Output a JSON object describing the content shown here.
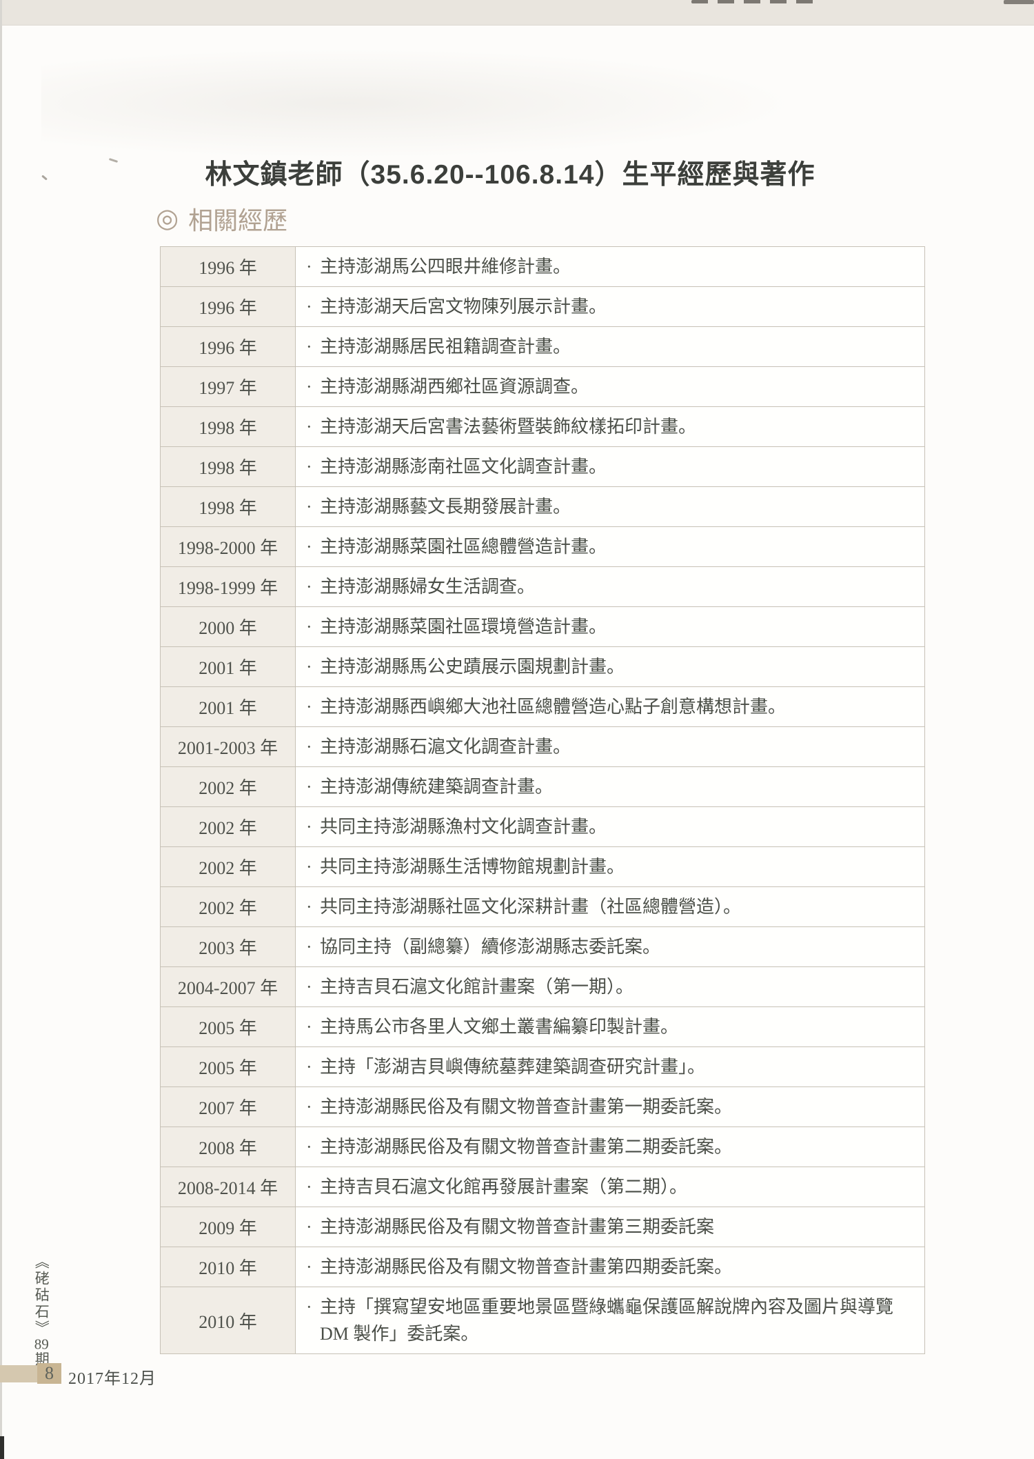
{
  "page": {
    "title": "林文鎮老師（35.6.20--106.8.14）生平經歷與著作",
    "section_marker": "◎",
    "section_title": "相關經歷"
  },
  "experience": {
    "bullet": "·",
    "rows": [
      {
        "year": "1996 年",
        "desc": "主持澎湖馬公四眼井維修計畫。"
      },
      {
        "year": "1996 年",
        "desc": "主持澎湖天后宮文物陳列展示計畫。"
      },
      {
        "year": "1996 年",
        "desc": "主持澎湖縣居民祖籍調查計畫。"
      },
      {
        "year": "1997 年",
        "desc": "主持澎湖縣湖西鄉社區資源調查。"
      },
      {
        "year": "1998 年",
        "desc": "主持澎湖天后宮書法藝術暨裝飾紋樣拓印計畫。"
      },
      {
        "year": "1998 年",
        "desc": "主持澎湖縣澎南社區文化調查計畫。"
      },
      {
        "year": "1998 年",
        "desc": "主持澎湖縣藝文長期發展計畫。"
      },
      {
        "year": "1998-2000 年",
        "desc": "主持澎湖縣菜園社區總體營造計畫。"
      },
      {
        "year": "1998-1999 年",
        "desc": "主持澎湖縣婦女生活調查。"
      },
      {
        "year": "2000 年",
        "desc": "主持澎湖縣菜園社區環境營造計畫。"
      },
      {
        "year": "2001 年",
        "desc": "主持澎湖縣馬公史蹟展示園規劃計畫。"
      },
      {
        "year": "2001 年",
        "desc": "主持澎湖縣西嶼鄉大池社區總體營造心點子創意構想計畫。"
      },
      {
        "year": "2001-2003 年",
        "desc": "主持澎湖縣石滬文化調查計畫。"
      },
      {
        "year": "2002 年",
        "desc": "主持澎湖傳統建築調查計畫。"
      },
      {
        "year": "2002 年",
        "desc": "共同主持澎湖縣漁村文化調查計畫。"
      },
      {
        "year": "2002 年",
        "desc": "共同主持澎湖縣生活博物館規劃計畫。"
      },
      {
        "year": "2002 年",
        "desc": "共同主持澎湖縣社區文化深耕計畫（社區總體營造）。"
      },
      {
        "year": "2003 年",
        "desc": "協同主持（副總纂）續修澎湖縣志委託案。"
      },
      {
        "year": "2004-2007 年",
        "desc": "主持吉貝石滬文化館計畫案（第一期）。"
      },
      {
        "year": "2005 年",
        "desc": "主持馬公市各里人文鄉土叢書編纂印製計畫。"
      },
      {
        "year": "2005 年",
        "desc": "主持「澎湖吉貝嶼傳統墓葬建築調查研究計畫」。"
      },
      {
        "year": "2007 年",
        "desc": "主持澎湖縣民俗及有關文物普查計畫第一期委託案。"
      },
      {
        "year": "2008 年",
        "desc": "主持澎湖縣民俗及有關文物普查計畫第二期委託案。"
      },
      {
        "year": "2008-2014 年",
        "desc": "主持吉貝石滬文化館再發展計畫案（第二期）。"
      },
      {
        "year": "2009 年",
        "desc": "主持澎湖縣民俗及有關文物普查計畫第三期委託案"
      },
      {
        "year": "2010 年",
        "desc": "主持澎湖縣民俗及有關文物普查計畫第四期委託案。"
      },
      {
        "year": "2010 年",
        "desc": "主持「撰寫望安地區重要地景區暨綠蠵龜保護區解說牌內容及圖片與導覽 DM 製作」委託案。"
      }
    ]
  },
  "footer": {
    "magazine_title": "《硓𥑮石》",
    "issue_number": "89",
    "issue_suffix": "期",
    "page_number": "8",
    "date": "2017年12月"
  },
  "colors": {
    "section_header": "#b1a292",
    "table_border": "#c7c1b6",
    "year_cell_bg": "#f1ede6",
    "top_band": "#e9e5de",
    "footer_bar": "#d5c8af",
    "footer_badge": "#c8b593",
    "body_text": "#4a4e47"
  }
}
